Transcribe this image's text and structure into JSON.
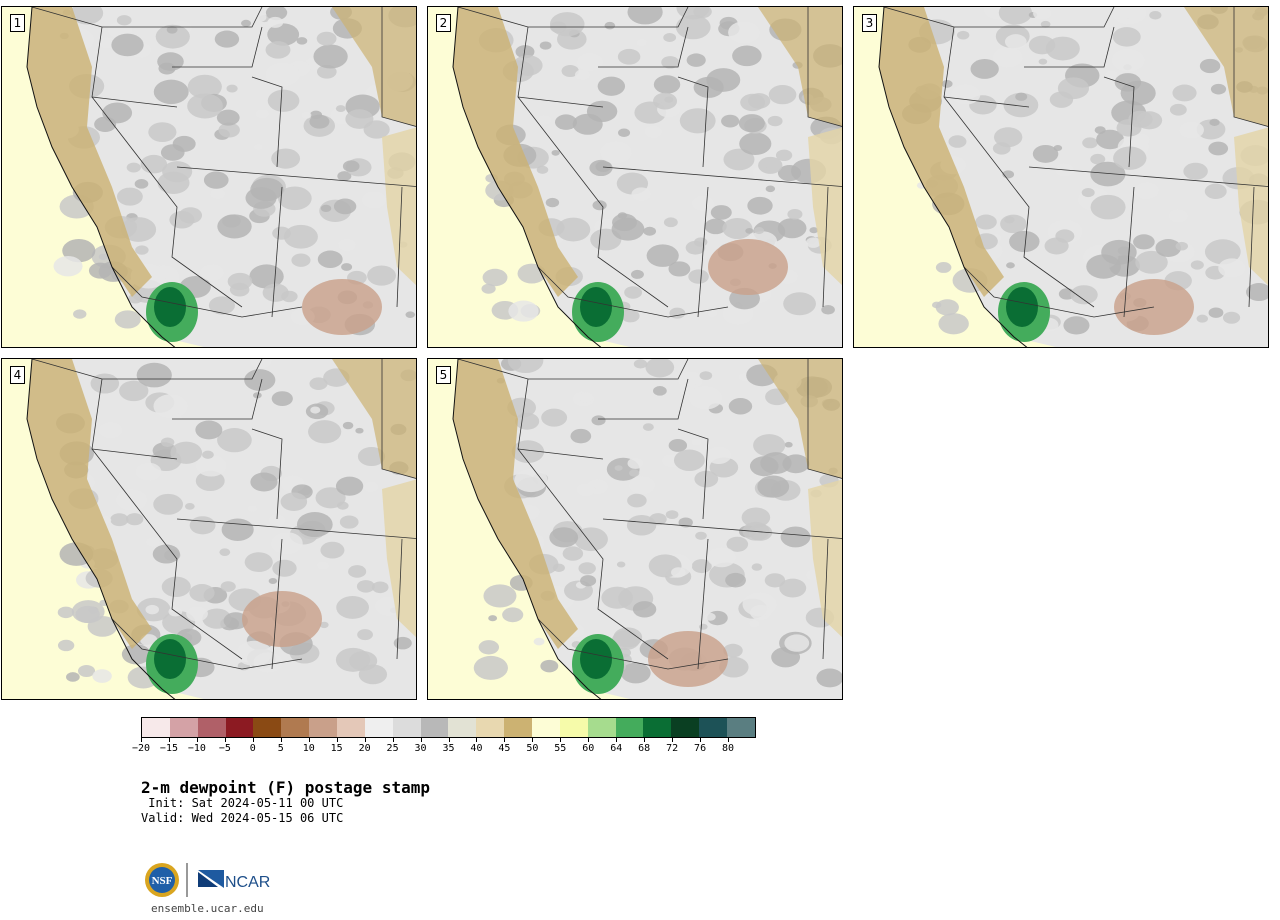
{
  "panels": [
    {
      "label": "1"
    },
    {
      "label": "2"
    },
    {
      "label": "3"
    },
    {
      "label": "4"
    },
    {
      "label": "5"
    }
  ],
  "colorbar": {
    "colors": [
      "#f7e9ea",
      "#d4a2a6",
      "#b06068",
      "#8c1a22",
      "#8a4a14",
      "#b07a50",
      "#c9a08a",
      "#e4c8b8",
      "#efefef",
      "#dcdcdc",
      "#b8b8b8",
      "#e2e2d4",
      "#e8d8b0",
      "#ccb272",
      "#fdfdd6",
      "#f6fbaa",
      "#a6dc8e",
      "#44ac5c",
      "#0a6e34",
      "#0a3f22",
      "#1d5257",
      "#5a7e81"
    ],
    "tick_labels": [
      "−20",
      "−15",
      "−10",
      "−5",
      "0",
      "5",
      "10",
      "15",
      "20",
      "25",
      "30",
      "35",
      "40",
      "45",
      "50",
      "55",
      "60",
      "64",
      "68",
      "72",
      "76",
      "80"
    ]
  },
  "map_colors": {
    "ocean": "#fdfdd6",
    "gray_light": "#e6e6e6",
    "gray_mid": "#c8c8c8",
    "gray_dark": "#b4b4b4",
    "tan": "#ccb272",
    "tan_light": "#e3d4a6",
    "green": "#0a6e34",
    "green_light": "#44ac5c",
    "brown": "#c9a08a",
    "border": "#333333"
  },
  "title": "2-m dewpoint (F) postage stamp",
  "init": " Init: Sat 2024-05-11 00 UTC",
  "valid": "Valid: Wed 2024-05-15 06 UTC",
  "logo": {
    "nsf": "NSF",
    "ncar": "NCAR"
  },
  "website": "ensemble.ucar.edu"
}
